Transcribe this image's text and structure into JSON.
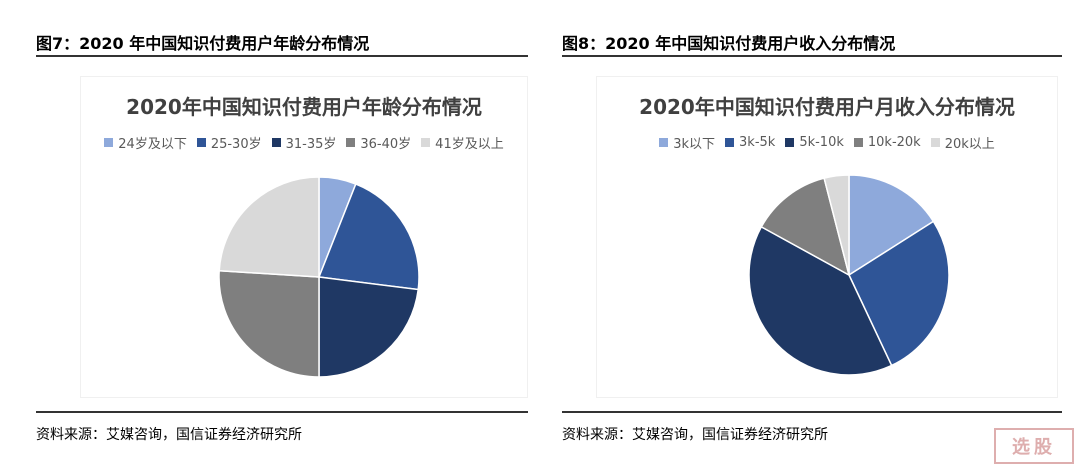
{
  "left": {
    "figure_title": "图7：2020 年中国知识付费用户年龄分布情况",
    "source": "资料来源：艾媒咨询，国信证券经济研究所"
  },
  "right": {
    "figure_title": "图8：2020 年中国知识付费用户收入分布情况",
    "source": "资料来源：艾媒咨询，国信证券经济研究所"
  },
  "watermark": "选股",
  "chart_data": [
    {
      "type": "pie",
      "title": "2020年中国知识付费用户年龄分布情况",
      "legend_position": "top",
      "categories": [
        "24岁及以下",
        "25-30岁",
        "31-35岁",
        "36-40岁",
        "41岁及以上"
      ],
      "values": [
        6,
        21,
        23,
        26,
        24
      ],
      "colors": [
        "#8EA9DB",
        "#2F5597",
        "#1F3864",
        "#7F7F7F",
        "#D9D9D9"
      ]
    },
    {
      "type": "pie",
      "title": "2020年中国知识付费用户月收入分布情况",
      "legend_position": "top",
      "categories": [
        "3k以下",
        "3k-5k",
        "5k-10k",
        "10k-20k",
        "20k以上"
      ],
      "values": [
        16,
        27,
        40,
        13,
        4
      ],
      "colors": [
        "#8EA9DB",
        "#2F5597",
        "#1F3864",
        "#7F7F7F",
        "#D9D9D9"
      ]
    }
  ]
}
